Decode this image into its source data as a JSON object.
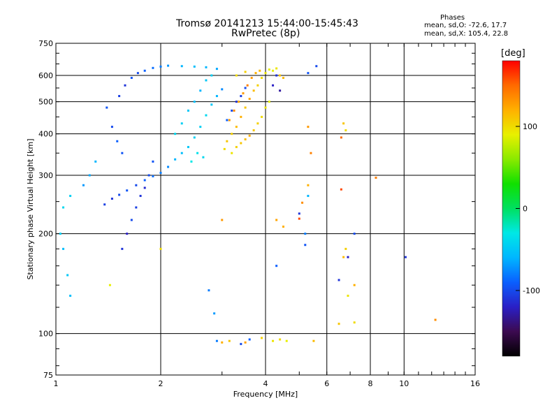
{
  "title": {
    "line1": "Tromsø 20141213 15:44:00-15:45:43",
    "line2": "RwPretec (8p)"
  },
  "phase_info": {
    "title": "Phases",
    "line1": "mean, sd,O: -72.6, 17.7",
    "line2": "mean, sd,X: 105.4, 22.8"
  },
  "colorbar": {
    "unit_label": "[deg]",
    "ticks": [
      {
        "value": 100,
        "label": "100"
      },
      {
        "value": 0,
        "label": "0"
      },
      {
        "value": -100,
        "label": "-100"
      }
    ],
    "range": [
      -180,
      180
    ],
    "colormap": [
      "#000000",
      "#3c0a50",
      "#2a1fc6",
      "#0a5fff",
      "#00b6ff",
      "#00e8e6",
      "#00e060",
      "#10e000",
      "#8aea00",
      "#e8f000",
      "#ffb000",
      "#ff6a00",
      "#ff0000"
    ]
  },
  "chart_data": {
    "type": "scatter",
    "title": "Tromsø 20141213 15:44:00-15:45:43",
    "subtitle": "RwPretec (8p)",
    "xlabel": "Frequency [MHz]",
    "ylabel": "Stationary phase Virtual Height [km]",
    "xscale": "log",
    "yscale": "log",
    "xlim": [
      1,
      16
    ],
    "ylim": [
      75,
      750
    ],
    "xticks": [
      {
        "value": 1,
        "label": "1"
      },
      {
        "value": 2,
        "label": "2"
      },
      {
        "value": 4,
        "label": "4"
      },
      {
        "value": 6,
        "label": "6"
      },
      {
        "value": 8,
        "label": "8"
      },
      {
        "value": 10,
        "label": "10"
      },
      {
        "value": 16,
        "label": "16"
      }
    ],
    "yticks": [
      {
        "value": 75,
        "label": "75"
      },
      {
        "value": 100,
        "label": "100"
      },
      {
        "value": 200,
        "label": "200"
      },
      {
        "value": 300,
        "label": "300"
      },
      {
        "value": 400,
        "label": "400"
      },
      {
        "value": 500,
        "label": "500"
      },
      {
        "value": 600,
        "label": "600"
      },
      {
        "value": 750,
        "label": "750"
      }
    ],
    "grid": true,
    "color_variable": "phase [deg]",
    "series": [
      {
        "mode": "O",
        "points": [
          [
            1.38,
            245,
            -105
          ],
          [
            1.45,
            255,
            -110
          ],
          [
            1.52,
            262,
            -100
          ],
          [
            1.6,
            270,
            -95
          ],
          [
            1.7,
            280,
            -100
          ],
          [
            1.8,
            290,
            -90
          ],
          [
            1.9,
            298,
            -85
          ],
          [
            2.0,
            305,
            -80
          ],
          [
            2.1,
            318,
            -75
          ],
          [
            2.2,
            335,
            -60
          ],
          [
            2.3,
            350,
            -55
          ],
          [
            2.4,
            365,
            -50
          ],
          [
            2.5,
            390,
            -45
          ],
          [
            2.6,
            420,
            -45
          ],
          [
            2.7,
            455,
            -40
          ],
          [
            2.8,
            490,
            -50
          ],
          [
            2.9,
            520,
            -60
          ],
          [
            3.0,
            545,
            -75
          ],
          [
            1.55,
            180,
            -110
          ],
          [
            1.6,
            200,
            -120
          ],
          [
            1.65,
            220,
            -100
          ],
          [
            1.7,
            240,
            -105
          ],
          [
            1.75,
            260,
            -110
          ],
          [
            1.8,
            275,
            -115
          ],
          [
            1.85,
            300,
            -100
          ],
          [
            1.9,
            330,
            -95
          ],
          [
            1.52,
            520,
            -105
          ],
          [
            1.58,
            560,
            -110
          ],
          [
            1.65,
            590,
            -95
          ],
          [
            1.72,
            610,
            -100
          ],
          [
            1.8,
            620,
            -90
          ],
          [
            1.9,
            632,
            -85
          ],
          [
            2.0,
            638,
            -80
          ],
          [
            2.1,
            642,
            -70
          ],
          [
            2.3,
            640,
            -60
          ],
          [
            2.5,
            638,
            -55
          ],
          [
            2.7,
            635,
            -60
          ],
          [
            2.9,
            628,
            -65
          ],
          [
            1.4,
            480,
            -95
          ],
          [
            1.45,
            420,
            -100
          ],
          [
            1.5,
            380,
            -90
          ],
          [
            1.55,
            350,
            -95
          ],
          [
            1.3,
            330,
            -60
          ],
          [
            1.25,
            300,
            -65
          ],
          [
            1.2,
            280,
            -70
          ],
          [
            1.1,
            260,
            -45
          ],
          [
            1.05,
            240,
            -40
          ],
          [
            1.03,
            200,
            -45
          ],
          [
            1.05,
            180,
            -55
          ],
          [
            1.08,
            150,
            -50
          ],
          [
            1.1,
            130,
            -55
          ],
          [
            2.2,
            400,
            -40
          ],
          [
            2.3,
            430,
            -45
          ],
          [
            2.4,
            470,
            -50
          ],
          [
            2.5,
            500,
            -55
          ],
          [
            2.6,
            540,
            -60
          ],
          [
            2.7,
            580,
            -50
          ],
          [
            2.8,
            600,
            -45
          ],
          [
            2.45,
            330,
            -30
          ],
          [
            2.55,
            350,
            -35
          ],
          [
            2.65,
            340,
            -40
          ],
          [
            3.1,
            440,
            -90
          ],
          [
            3.2,
            470,
            -100
          ],
          [
            3.3,
            500,
            -110
          ],
          [
            3.4,
            520,
            -105
          ],
          [
            3.5,
            550,
            -100
          ],
          [
            4.2,
            560,
            -120
          ],
          [
            4.4,
            540,
            -130
          ],
          [
            4.3,
            600,
            -110
          ],
          [
            5.6,
            640,
            -100
          ],
          [
            5.3,
            610,
            -95
          ],
          [
            2.9,
            95,
            -80
          ],
          [
            3.6,
            96,
            -90
          ],
          [
            3.4,
            93,
            -100
          ],
          [
            2.85,
            115,
            -70
          ],
          [
            2.75,
            135,
            -80
          ],
          [
            4.3,
            160,
            -90
          ],
          [
            5.2,
            185,
            -95
          ],
          [
            6.5,
            145,
            -110
          ],
          [
            6.9,
            170,
            -120
          ],
          [
            10.1,
            170,
            -110
          ],
          [
            7.2,
            200,
            -100
          ],
          [
            5.2,
            200,
            -80
          ],
          [
            5.0,
            230,
            -110
          ],
          [
            5.3,
            260,
            -60
          ]
        ]
      },
      {
        "mode": "X",
        "points": [
          [
            3.05,
            360,
            100
          ],
          [
            3.1,
            380,
            110
          ],
          [
            3.2,
            400,
            105
          ],
          [
            3.3,
            420,
            115
          ],
          [
            3.4,
            450,
            120
          ],
          [
            3.5,
            480,
            110
          ],
          [
            3.6,
            510,
            125
          ],
          [
            3.7,
            540,
            115
          ],
          [
            3.8,
            560,
            105
          ],
          [
            3.9,
            590,
            100
          ],
          [
            4.0,
            610,
            95
          ],
          [
            4.1,
            625,
            90
          ],
          [
            3.2,
            350,
            95
          ],
          [
            3.3,
            365,
            105
          ],
          [
            3.4,
            375,
            110
          ],
          [
            3.5,
            385,
            115
          ],
          [
            3.6,
            395,
            120
          ],
          [
            3.7,
            410,
            110
          ],
          [
            3.8,
            430,
            105
          ],
          [
            3.9,
            450,
            100
          ],
          [
            4.0,
            480,
            95
          ],
          [
            4.1,
            500,
            90
          ],
          [
            3.15,
            440,
            130
          ],
          [
            3.25,
            470,
            135
          ],
          [
            3.35,
            500,
            125
          ],
          [
            3.45,
            530,
            130
          ],
          [
            3.55,
            560,
            140
          ],
          [
            3.65,
            590,
            130
          ],
          [
            3.75,
            610,
            120
          ],
          [
            3.85,
            620,
            115
          ],
          [
            4.2,
            620,
            90
          ],
          [
            4.3,
            630,
            95
          ],
          [
            4.4,
            600,
            110
          ],
          [
            4.5,
            590,
            115
          ],
          [
            3.3,
            600,
            100
          ],
          [
            3.5,
            615,
            105
          ],
          [
            3.0,
            94,
            120
          ],
          [
            3.15,
            95,
            110
          ],
          [
            3.5,
            94,
            125
          ],
          [
            3.9,
            97,
            105
          ],
          [
            4.2,
            95,
            95
          ],
          [
            4.4,
            96,
            100
          ],
          [
            4.6,
            95,
            90
          ],
          [
            5.5,
            95,
            115
          ],
          [
            5.3,
            420,
            130
          ],
          [
            5.4,
            350,
            140
          ],
          [
            6.7,
            430,
            110
          ],
          [
            6.8,
            410,
            100
          ],
          [
            6.6,
            390,
            150
          ],
          [
            8.3,
            295,
            140
          ],
          [
            6.6,
            272,
            160
          ],
          [
            5.1,
            248,
            135
          ],
          [
            5.0,
            222,
            160
          ],
          [
            4.5,
            210,
            120
          ],
          [
            3.0,
            220,
            130
          ],
          [
            4.3,
            220,
            125
          ],
          [
            5.3,
            280,
            120
          ],
          [
            6.8,
            180,
            105
          ],
          [
            6.5,
            107,
            110
          ],
          [
            7.2,
            108,
            100
          ],
          [
            6.9,
            130,
            95
          ],
          [
            12.3,
            110,
            135
          ],
          [
            7.2,
            140,
            120
          ],
          [
            6.7,
            170,
            115
          ],
          [
            1.43,
            140,
            90
          ],
          [
            2.0,
            180,
            100
          ]
        ]
      }
    ]
  }
}
